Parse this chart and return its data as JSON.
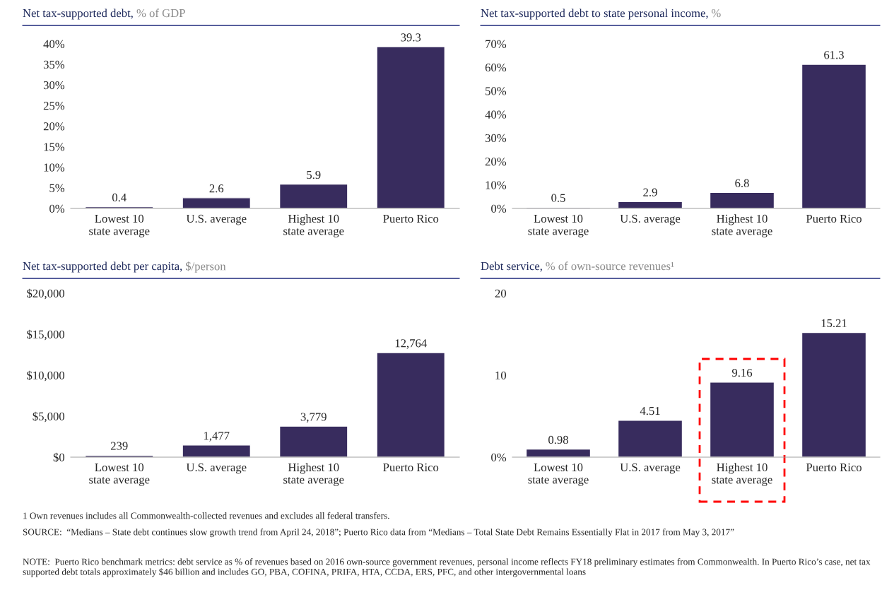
{
  "chart_data": [
    {
      "type": "bar",
      "title": "Net tax-supported debt,",
      "subtitle": "% of GDP",
      "categories": [
        "Lowest 10\nstate average",
        "U.S. average",
        "Highest 10\nstate average",
        "Puerto Rico"
      ],
      "values": [
        0.4,
        2.6,
        5.9,
        39.3
      ],
      "value_labels": [
        "0.4",
        "2.6",
        "5.9",
        "39.3"
      ],
      "color": "#382c5e",
      "ylim": [
        0,
        40
      ],
      "yticks": [
        {
          "value": 0,
          "label": "0%"
        },
        {
          "value": 5,
          "label": "5%"
        },
        {
          "value": 10,
          "label": "10%"
        },
        {
          "value": 15,
          "label": "15%"
        },
        {
          "value": 20,
          "label": "20%"
        },
        {
          "value": 25,
          "label": "25%"
        },
        {
          "value": 30,
          "label": "30%"
        },
        {
          "value": 35,
          "label": "35%"
        },
        {
          "value": 40,
          "label": "40%"
        }
      ],
      "grid": false
    },
    {
      "type": "bar",
      "title": "Net tax-supported debt to state personal income,",
      "subtitle": "%",
      "categories": [
        "Lowest 10\nstate average",
        "U.S. average",
        "Highest 10\nstate average",
        "Puerto Rico"
      ],
      "values": [
        0.5,
        2.9,
        6.8,
        61.3
      ],
      "value_labels": [
        "0.5",
        "2.9",
        "6.8",
        "61.3"
      ],
      "color": "#382c5e",
      "ylim": [
        0,
        70
      ],
      "yticks": [
        {
          "value": 0,
          "label": "0%"
        },
        {
          "value": 10,
          "label": "10%"
        },
        {
          "value": 20,
          "label": "20%"
        },
        {
          "value": 30,
          "label": "30%"
        },
        {
          "value": 40,
          "label": "40%"
        },
        {
          "value": 50,
          "label": "50%"
        },
        {
          "value": 60,
          "label": "60%"
        },
        {
          "value": 70,
          "label": "70%"
        }
      ],
      "grid": false
    },
    {
      "type": "bar",
      "title": "Net tax-supported debt per capita,",
      "subtitle": "$/person",
      "categories": [
        "Lowest 10\nstate average",
        "U.S. average",
        "Highest 10\nstate average",
        "Puerto Rico"
      ],
      "values": [
        239,
        1477,
        3779,
        12764
      ],
      "value_labels": [
        "239",
        "1,477",
        "3,779",
        "12,764"
      ],
      "color": "#382c5e",
      "ylim": [
        0,
        20000
      ],
      "yticks": [
        {
          "value": 0,
          "label": "$0"
        },
        {
          "value": 5000,
          "label": "$5,000"
        },
        {
          "value": 10000,
          "label": "$10,000"
        },
        {
          "value": 15000,
          "label": "$15,000"
        },
        {
          "value": 20000,
          "label": "$20,000"
        }
      ],
      "grid": false
    },
    {
      "type": "bar",
      "title": "Debt service,",
      "subtitle": "% of own-source revenues¹",
      "categories": [
        "Lowest 10\nstate average",
        "U.S. average",
        "Highest 10\nstate average",
        "Puerto Rico"
      ],
      "values": [
        0.98,
        4.51,
        9.16,
        15.21
      ],
      "value_labels": [
        "0.98",
        "4.51",
        "9.16",
        "15.21"
      ],
      "color": "#382c5e",
      "ylim": [
        0,
        20
      ],
      "yticks": [
        {
          "value": 0,
          "label": "0%"
        },
        10,
        20
      ],
      "grid": false,
      "annotations": [
        "1 Own revenues includes all Commonwealth-collected revenues and excludes all federal transfers.",
        "SOURCE:  “Medians – State debt continues slow growth trend from April 24, 2018”; Puerto Rico data from “Medians – Total State Debt Remains Essentially Flat in 2017 from May 3, 2017”",
        "NOTE:  Puerto Rico benchmark metrics: debt service as % of revenues based on 2016 own-source government revenues, personal income reflects FY18 preliminary estimates from Commonwealth. In Puerto Rico’s case, net tax supported debt totals approximately $46 billion and includes GO, PBA, COFINA, PRIFA, HTA, CCDA, ERS, PFC, and other intergovernmental loans"
      ]
    }
  ]
}
